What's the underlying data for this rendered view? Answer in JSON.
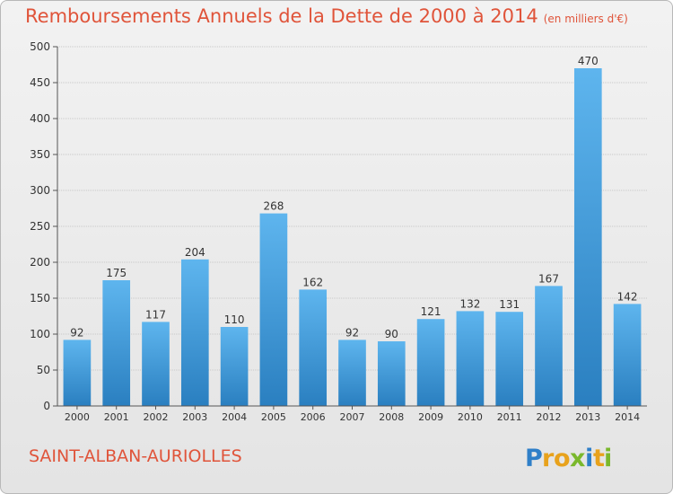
{
  "header": {
    "title": "Remboursements Annuels de la Dette de 2000 à 2014",
    "unit": "(en milliers d'€)"
  },
  "footer": {
    "commune": "SAINT-ALBAN-AURIOLLES",
    "logo_text": "Proxiti"
  },
  "colors": {
    "title": "#e0543a",
    "bar_top": "#5eb5ee",
    "bar_bottom": "#2a7fc0"
  },
  "chart_data": {
    "type": "bar",
    "title": "Remboursements Annuels de la Dette de 2000 à 2014",
    "subtitle": "(en milliers d'€)",
    "categories": [
      "2000",
      "2001",
      "2002",
      "2003",
      "2004",
      "2005",
      "2006",
      "2007",
      "2008",
      "2009",
      "2010",
      "2011",
      "2012",
      "2013",
      "2014"
    ],
    "values": [
      92,
      175,
      117,
      204,
      110,
      268,
      162,
      92,
      90,
      121,
      132,
      131,
      167,
      470,
      142
    ],
    "ylim": [
      0,
      500
    ],
    "yticks": [
      0,
      50,
      100,
      150,
      200,
      250,
      300,
      350,
      400,
      450,
      500
    ],
    "grid": true,
    "data_labels": true
  }
}
